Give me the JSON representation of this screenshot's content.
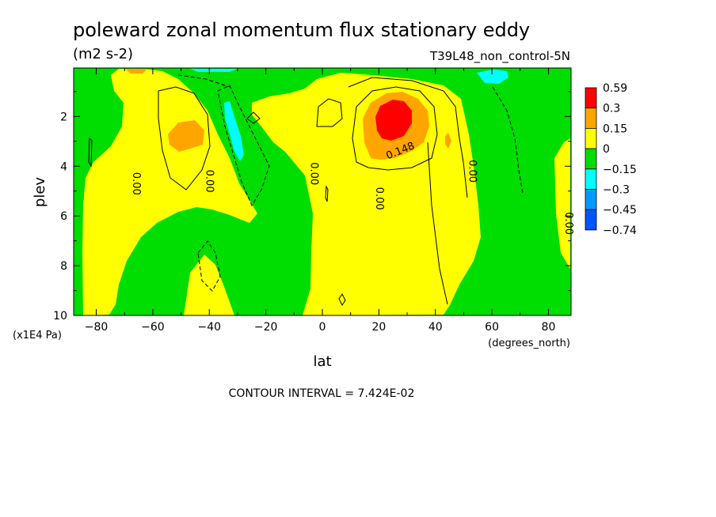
{
  "chart_data": {
    "type": "heatmap",
    "subtype": "filled-contour",
    "title": "poleward zonal momentum flux stationary eddy",
    "units": "(m2 s-2)",
    "run_label": "T39L48_non_control-5N",
    "xlabel": "lat",
    "x_units": "(degrees_north)",
    "ylabel": "plev",
    "y_units": "(x1E4 Pa)",
    "xlim": [
      -88,
      88
    ],
    "ylim": [
      10,
      0.05
    ],
    "y_inverted": true,
    "x_ticks": [
      -80,
      -60,
      -40,
      -20,
      0,
      20,
      40,
      60,
      80
    ],
    "y_ticks": [
      2,
      4,
      6,
      8,
      10
    ],
    "footer": "CONTOUR INTERVAL = 7.424E-02",
    "contour_interval": 0.07424,
    "legend": {
      "placement": "right",
      "labels": [
        "0.59",
        "0.3",
        "0.15",
        "0",
        "−0.15",
        "−0.3",
        "−0.45",
        "−0.74"
      ],
      "colors": [
        "#ff0000",
        "#ffa500",
        "#ffff00",
        "#00dd00",
        "#00ffff",
        "#0099ff",
        "#0055ff"
      ]
    },
    "contour_labels": [
      {
        "text": "0.148",
        "lat": 28,
        "plev": 3.5
      },
      {
        "text": "0.00",
        "lat": -67,
        "plev": 4.7
      },
      {
        "text": "0.00",
        "lat": -41,
        "plev": 4.6
      },
      {
        "text": "0.00",
        "lat": -4,
        "plev": 4.3
      },
      {
        "text": "0.00",
        "lat": 19,
        "plev": 5.3
      },
      {
        "text": "0.00",
        "lat": 52,
        "plev": 4.2
      },
      {
        "text": "0.00",
        "lat": 86,
        "plev": 6.3
      }
    ],
    "features": [
      {
        "sign": "positive",
        "max_band": "0.59",
        "lat": 26,
        "plev": 2.1,
        "desc": "subtropical NH maximum"
      },
      {
        "sign": "positive",
        "max_band": "0.3",
        "lat": -50,
        "plev": 2.8
      },
      {
        "sign": "negative",
        "max_band": "-0.3",
        "lat": -32,
        "plev": 2.4
      },
      {
        "sign": "negative",
        "max_band": "-0.3",
        "lat": 63,
        "plev": 0.3
      }
    ]
  }
}
